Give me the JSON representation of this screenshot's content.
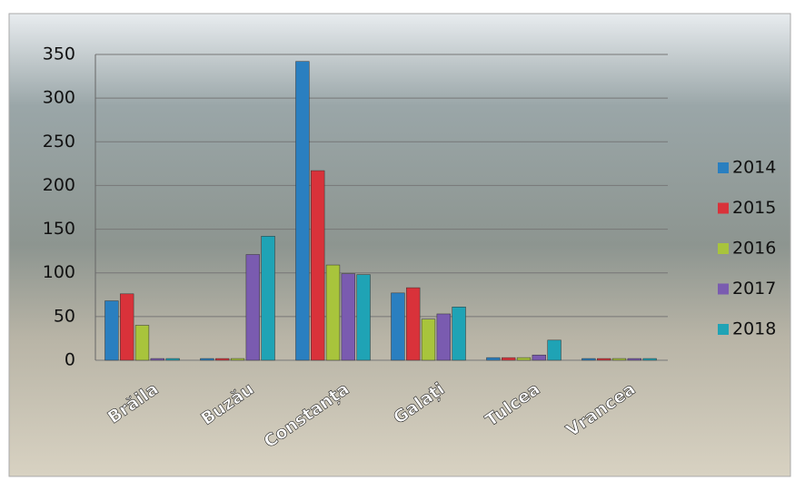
{
  "chart_data": {
    "type": "bar",
    "categories": [
      "Brăila",
      "Buzău",
      "Constanța",
      "Galați",
      "Tulcea",
      "Vrancea"
    ],
    "series": [
      {
        "name": "2014",
        "color": "#2a7fc0",
        "values": [
          68,
          2,
          342,
          77,
          3,
          2
        ]
      },
      {
        "name": "2015",
        "color": "#d9323a",
        "values": [
          76,
          2,
          217,
          83,
          3,
          2
        ]
      },
      {
        "name": "2016",
        "color": "#a8c43c",
        "values": [
          40,
          2,
          109,
          47,
          3,
          2
        ]
      },
      {
        "name": "2017",
        "color": "#7a5bb0",
        "values": [
          2,
          121,
          99,
          53,
          6,
          2
        ]
      },
      {
        "name": "2018",
        "color": "#1fa3b5",
        "values": [
          2,
          142,
          98,
          61,
          23,
          2
        ]
      }
    ],
    "ylim": [
      0,
      350
    ],
    "yticks": [
      0,
      50,
      100,
      150,
      200,
      250,
      300,
      350
    ],
    "grid": true,
    "legend": "right"
  }
}
